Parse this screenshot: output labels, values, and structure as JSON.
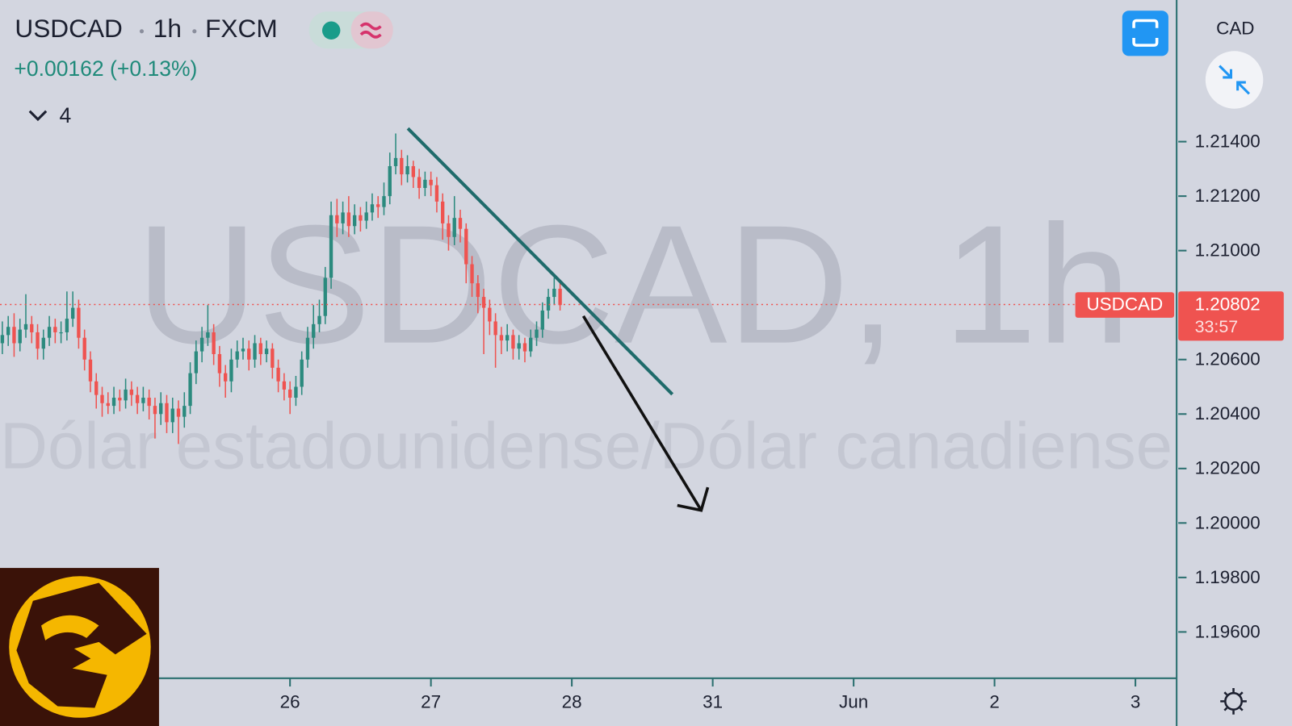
{
  "header": {
    "symbol": "USDCAD",
    "interval": "1h",
    "exchange": "FXCM",
    "change": "+0.00162 (+0.13%)",
    "indicator_count": 4
  },
  "watermark": {
    "title": "USDCAD, 1h",
    "description": "Dólar estadounidense/Dólar canadiense"
  },
  "price_scale": {
    "currency": "CAD"
  },
  "chart_data": {
    "type": "candlestick",
    "up_color": "#2b8a7e",
    "down_color": "#ef5350",
    "open": [
      1.2066,
      1.2069,
      1.2072,
      1.2066,
      1.2071,
      1.2073,
      1.207,
      1.2064,
      1.2068,
      1.2072,
      1.207,
      1.207,
      1.2075,
      1.2079,
      1.2068,
      1.206,
      1.2052,
      1.2047,
      1.2044,
      1.2043,
      1.2046,
      1.2045,
      1.2049,
      1.2047,
      1.2044,
      1.2046,
      1.2043,
      1.204,
      1.2044,
      1.2037,
      1.2042,
      1.2039,
      1.2043,
      1.2055,
      1.2063,
      1.2068,
      1.207,
      1.2062,
      1.2055,
      1.2052,
      1.206,
      1.2063,
      1.2064,
      1.206,
      1.2066,
      1.2062,
      1.2064,
      1.2057,
      1.2052,
      1.2049,
      1.2046,
      1.205,
      1.206,
      1.2068,
      1.2073,
      1.2076,
      1.209,
      1.2113,
      1.211,
      1.2114,
      1.2109,
      1.2113,
      1.2111,
      1.2114,
      1.2117,
      1.2116,
      1.212,
      1.2131,
      1.2134,
      1.2128,
      1.2131,
      1.2127,
      1.2123,
      1.2126,
      1.2124,
      1.2118,
      1.211,
      1.2105,
      1.2112,
      1.2108,
      1.2095,
      1.2088,
      1.2083,
      1.2079,
      1.2074,
      1.2069,
      1.2067,
      1.2069,
      1.2064,
      1.2066,
      1.2063,
      1.2068,
      1.2071,
      1.2078,
      1.2083,
      1.2086
    ],
    "high": [
      1.2074,
      1.2076,
      1.2077,
      1.2075,
      1.2084,
      1.2076,
      1.2073,
      1.2071,
      1.2076,
      1.2075,
      1.2074,
      1.2085,
      1.2085,
      1.2082,
      1.2071,
      1.2063,
      1.2055,
      1.205,
      1.2048,
      1.205,
      1.2049,
      1.2053,
      1.2052,
      1.205,
      1.205,
      1.2049,
      1.2046,
      1.2048,
      1.2047,
      1.2046,
      1.2045,
      1.2048,
      1.2059,
      1.2067,
      1.2072,
      1.208,
      1.2073,
      1.2065,
      1.2058,
      1.2064,
      1.2067,
      1.2068,
      1.2067,
      1.2069,
      1.2068,
      1.2067,
      1.2066,
      1.206,
      1.2055,
      1.2052,
      1.2054,
      1.2063,
      1.2072,
      1.208,
      1.2082,
      1.2094,
      1.2118,
      1.2119,
      1.2118,
      1.212,
      1.2117,
      1.2116,
      1.2118,
      1.2121,
      1.212,
      1.2125,
      1.2136,
      1.2143,
      1.2137,
      1.2135,
      1.2133,
      1.213,
      1.2129,
      1.2129,
      1.2127,
      1.2121,
      1.2113,
      1.212,
      1.2115,
      1.211,
      1.2098,
      1.2091,
      1.2086,
      1.2082,
      1.2077,
      1.2072,
      1.2073,
      1.2071,
      1.2069,
      1.2068,
      1.2071,
      1.2074,
      1.2081,
      1.2086,
      1.209,
      1.2088
    ],
    "low": [
      1.2062,
      1.2065,
      1.2061,
      1.2063,
      1.2068,
      1.2066,
      1.206,
      1.206,
      1.2065,
      1.2066,
      1.2066,
      1.2067,
      1.2072,
      1.2064,
      1.2056,
      1.2048,
      1.2042,
      1.2039,
      1.204,
      1.204,
      1.2041,
      1.2042,
      1.2043,
      1.204,
      1.2041,
      1.2038,
      1.2031,
      1.2036,
      1.2033,
      1.2033,
      1.2029,
      1.2035,
      1.204,
      1.2051,
      1.2059,
      1.2065,
      1.2058,
      1.205,
      1.2046,
      1.2048,
      1.2057,
      1.206,
      1.2056,
      1.2057,
      1.2058,
      1.2059,
      1.2053,
      1.2048,
      1.2045,
      1.204,
      1.2043,
      1.2047,
      1.2057,
      1.2064,
      1.207,
      1.2073,
      1.2086,
      1.2105,
      1.2106,
      1.2105,
      1.2106,
      1.2107,
      1.2108,
      1.2111,
      1.2112,
      1.2113,
      1.2117,
      1.2128,
      1.2124,
      1.2125,
      1.2123,
      1.2119,
      1.212,
      1.212,
      1.2114,
      1.2104,
      1.21,
      1.2102,
      1.2103,
      1.2088,
      1.2083,
      1.2077,
      1.2062,
      1.2069,
      1.2057,
      1.2062,
      1.2063,
      1.206,
      1.206,
      1.2059,
      1.2061,
      1.2065,
      1.2068,
      1.2075,
      1.208,
      1.2078
    ],
    "close": [
      1.2069,
      1.2072,
      1.2066,
      1.2071,
      1.2073,
      1.207,
      1.2064,
      1.2068,
      1.2072,
      1.207,
      1.207,
      1.2075,
      1.2079,
      1.2068,
      1.206,
      1.2052,
      1.2047,
      1.2044,
      1.2043,
      1.2046,
      1.2045,
      1.2049,
      1.2047,
      1.2044,
      1.2046,
      1.2043,
      1.204,
      1.2044,
      1.2037,
      1.2042,
      1.2039,
      1.2043,
      1.2055,
      1.2063,
      1.2068,
      1.207,
      1.2062,
      1.2055,
      1.2052,
      1.206,
      1.2063,
      1.2064,
      1.206,
      1.2066,
      1.2062,
      1.2064,
      1.2057,
      1.2052,
      1.2049,
      1.2046,
      1.205,
      1.206,
      1.2068,
      1.2073,
      1.2076,
      1.209,
      1.2113,
      1.211,
      1.2114,
      1.2109,
      1.2113,
      1.2111,
      1.2114,
      1.2117,
      1.2116,
      1.212,
      1.2131,
      1.2134,
      1.2128,
      1.2131,
      1.2127,
      1.2123,
      1.2126,
      1.2124,
      1.2118,
      1.211,
      1.2105,
      1.2112,
      1.2108,
      1.2095,
      1.2088,
      1.2083,
      1.2079,
      1.2074,
      1.2069,
      1.2067,
      1.2069,
      1.2064,
      1.2066,
      1.2063,
      1.2068,
      1.2071,
      1.2078,
      1.2083,
      1.2086,
      1.208
    ],
    "last_price": 1.20802,
    "last_price_name": "USDCAD",
    "countdown": "33:57",
    "last_price_color": "#ef5350",
    "ylim": [
      1.1943,
      1.2192
    ],
    "yticks": [
      {
        "value": 1.196,
        "label": "1.19600"
      },
      {
        "value": 1.198,
        "label": "1.19800"
      },
      {
        "value": 1.2,
        "label": "1.20000"
      },
      {
        "value": 1.202,
        "label": "1.20200"
      },
      {
        "value": 1.204,
        "label": "1.20400"
      },
      {
        "value": 1.206,
        "label": "1.20600"
      },
      {
        "value": 1.21,
        "label": "1.21000"
      },
      {
        "value": 1.212,
        "label": "1.21200"
      },
      {
        "value": 1.214,
        "label": "1.21400"
      }
    ],
    "xlim": [
      -0.4,
      199.6
    ],
    "xticks": [
      {
        "value": 49,
        "label": "26"
      },
      {
        "value": 73,
        "label": "27"
      },
      {
        "value": 97,
        "label": "28"
      },
      {
        "value": 121,
        "label": "31"
      },
      {
        "value": 145,
        "label": "Jun"
      },
      {
        "value": 169,
        "label": "2"
      },
      {
        "value": 193,
        "label": "3"
      }
    ]
  }
}
